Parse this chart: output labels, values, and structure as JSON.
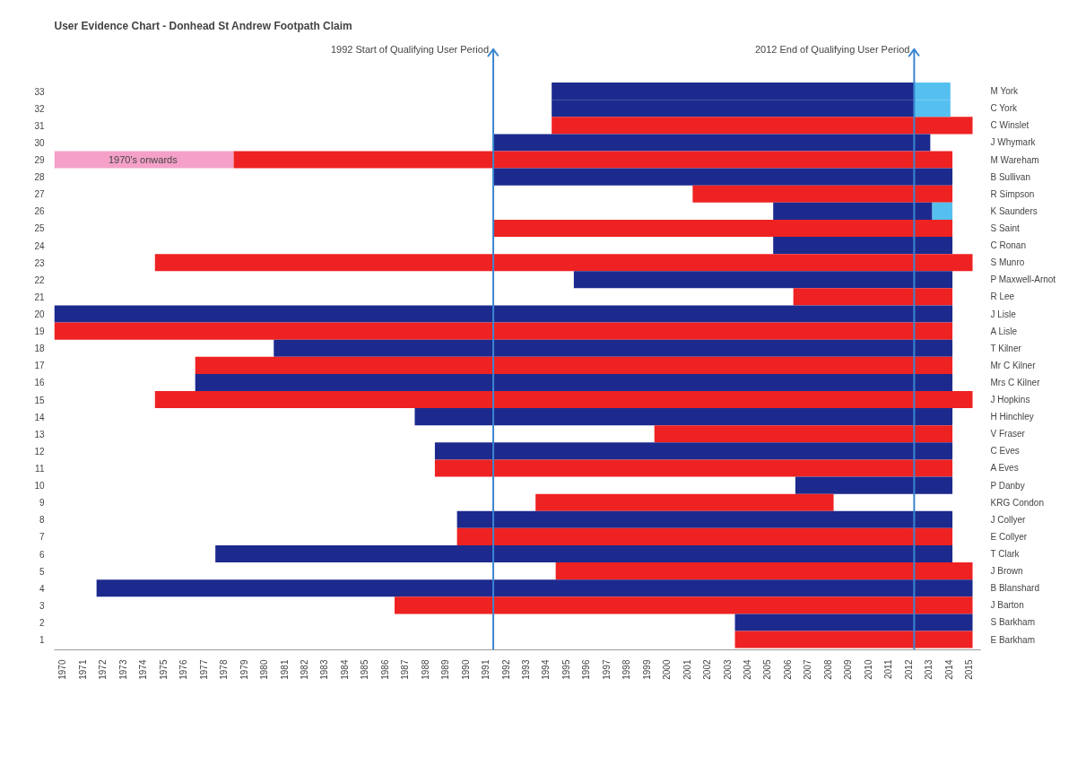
{
  "chart_data": {
    "type": "bar",
    "orientation": "horizontal",
    "title": "User Evidence Chart - Donhead St Andrew Footpath Claim",
    "categories": [
      "33",
      "32",
      "31",
      "30",
      "29",
      "28",
      "27",
      "26",
      "25",
      "24",
      "23",
      "22",
      "21",
      "20",
      "19",
      "18",
      "17",
      "16",
      "15",
      "14",
      "13",
      "12",
      "11",
      "10",
      "9",
      "8",
      "7",
      "6",
      "5",
      "4",
      "3",
      "2",
      "1"
    ],
    "y2_categories": [
      "M York",
      "C York",
      "C Winslet",
      "J Whymark",
      "M Wareham",
      "B Sullivan",
      "R Simpson",
      "K Saunders",
      "S Saint",
      "C Ronan",
      "S Munro",
      "P Maxwell-Arnot",
      "R Lee",
      "J Lisle",
      "A Lisle",
      "T Kilner",
      "Mr C Kilner",
      "Mrs C Kilner",
      "J Hopkins",
      "H Hinchley",
      "V Fraser",
      "C Eves",
      "A Eves",
      "P Danby",
      "KRG Condon",
      "J Collyer",
      "E Collyer",
      "T Clark",
      "J Brown",
      "B Blanshard",
      "J Barton",
      "S Barkham",
      "E Barkham"
    ],
    "series": [
      {
        "base": [
          1994.3,
          1994.3,
          1994.3,
          1991.4,
          1978.5,
          1991.4,
          2001.3,
          2005.3,
          1991.4,
          2005.3,
          1974.6,
          1995.4,
          2006.3,
          1969.6,
          1969.6,
          1980.5,
          1976.6,
          1976.6,
          1974.6,
          1987.5,
          1999.4,
          1988.5,
          1988.5,
          2006.4,
          1993.5,
          1989.6,
          1989.6,
          1977.6,
          1994.5,
          1971.7,
          1986.5,
          2003.4,
          2003.4
        ],
        "values": [
          18.0,
          18.0,
          20.9,
          21.7,
          35.7,
          22.8,
          12.9,
          7.9,
          22.8,
          8.9,
          40.6,
          18.8,
          7.9,
          44.6,
          44.6,
          33.7,
          37.6,
          37.6,
          40.6,
          26.7,
          14.8,
          25.7,
          25.7,
          7.8,
          14.8,
          24.6,
          24.6,
          36.6,
          20.7,
          43.5,
          28.7,
          11.8,
          11.8
        ],
        "colors": [
          "#1c2a8e",
          "#1c2a8e",
          "#ee2222",
          "#1c2a8e",
          "#ee2222",
          "#1c2a8e",
          "#ee2222",
          "#1c2a8e",
          "#ee2222",
          "#1c2a8e",
          "#ee2222",
          "#1c2a8e",
          "#ee2222",
          "#1c2a8e",
          "#ee2222",
          "#1c2a8e",
          "#ee2222",
          "#1c2a8e",
          "#ee2222",
          "#1c2a8e",
          "#ee2222",
          "#1c2a8e",
          "#ee2222",
          "#1c2a8e",
          "#ee2222",
          "#1c2a8e",
          "#ee2222",
          "#1c2a8e",
          "#ee2222",
          "#1c2a8e",
          "#ee2222",
          "#1c2a8e",
          "#ee2222"
        ]
      },
      {
        "base": [
          2012.3,
          2012.3,
          null,
          null,
          1969.6,
          null,
          null,
          2013.2,
          null,
          null,
          null,
          null,
          null,
          null,
          null,
          null,
          null,
          null,
          null,
          null,
          null,
          null,
          null,
          null,
          null,
          null,
          null,
          null,
          null,
          null,
          null,
          null,
          null
        ],
        "values": [
          1.8,
          1.8,
          null,
          null,
          8.9,
          null,
          null,
          1.0,
          null,
          null,
          null,
          null,
          null,
          null,
          null,
          null,
          null,
          null,
          null,
          null,
          null,
          null,
          null,
          null,
          null,
          null,
          null,
          null,
          null,
          null,
          null,
          null,
          null
        ],
        "colors": [
          "#55c0f0",
          "#55c0f0",
          null,
          null,
          "#f4a0c8",
          null,
          null,
          "#55c0f0",
          null,
          null,
          null,
          null,
          null,
          null,
          null,
          null,
          null,
          null,
          null,
          null,
          null,
          null,
          null,
          null,
          null,
          null,
          null,
          null,
          null,
          null,
          null,
          null,
          null
        ]
      }
    ],
    "annotations": [
      {
        "text": "1970's onwards",
        "x": 1974,
        "y": "29"
      }
    ],
    "xlim": [
      1969.6,
      2015.6
    ],
    "xticks": [
      1970,
      1971,
      1972,
      1973,
      1974,
      1975,
      1976,
      1977,
      1978,
      1979,
      1980,
      1981,
      1982,
      1983,
      1984,
      1985,
      1986,
      1987,
      1988,
      1989,
      1990,
      1991,
      1992,
      1993,
      1994,
      1995,
      1996,
      1997,
      1998,
      1999,
      2000,
      2001,
      2002,
      2003,
      2004,
      2005,
      2006,
      2007,
      2008,
      2009,
      2010,
      2011,
      2012,
      2013,
      2014,
      2015
    ],
    "ref_lines": [
      {
        "axis": "x",
        "value": 1991.4,
        "label": "1992 Start of Qualifying User Period",
        "color": "#3a86d0"
      },
      {
        "axis": "x",
        "value": 2012.3,
        "label": "2012 End of Qualifying User Period",
        "color": "#3a86d0"
      }
    ]
  }
}
